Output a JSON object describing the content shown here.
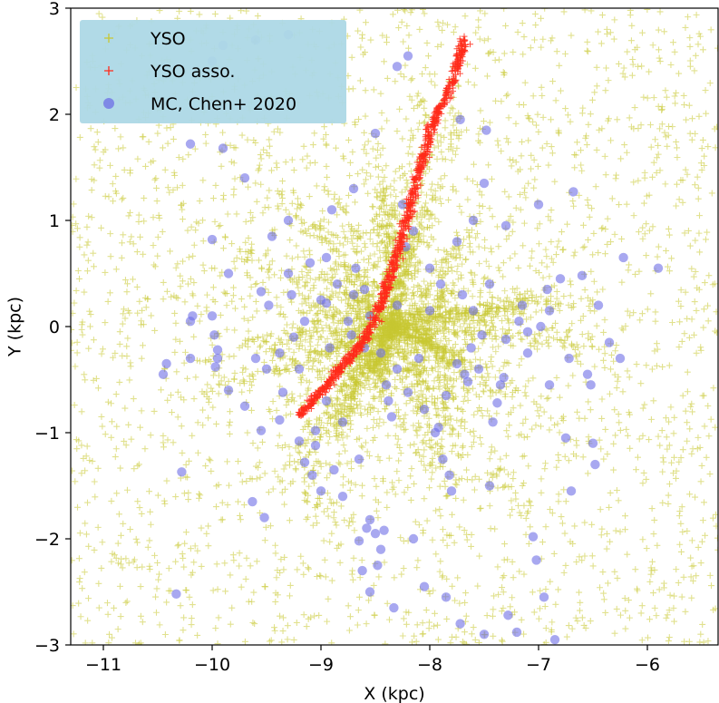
{
  "chart_data": {
    "type": "scatter",
    "xlabel": "X (kpc)",
    "ylabel": "Y (kpc)",
    "xlim": [
      -11.3,
      -5.35
    ],
    "ylim": [
      -3,
      3
    ],
    "xticks": [
      -11,
      -10,
      -9,
      -8,
      -7,
      -6
    ],
    "xtick_labels": [
      "−11",
      "−10",
      "−9",
      "−8",
      "−7",
      "−6"
    ],
    "yticks": [
      -3,
      -2,
      -1,
      0,
      1,
      2,
      3
    ],
    "ytick_labels": [
      "−3",
      "−2",
      "−1",
      "0",
      "1",
      "2",
      "3"
    ],
    "grid": false,
    "legend_position": "top-left",
    "legend_background": "#add8e6",
    "series": [
      {
        "name": "YSO",
        "marker": "plus",
        "color": "#c8c832",
        "distribution": {
          "center": [
            -8.34,
            0.0
          ],
          "radial_spokes": true,
          "extent": [
            -11.3,
            -5.35,
            -3,
            3
          ]
        }
      },
      {
        "name": "YSO asso.",
        "marker": "plus",
        "color": "#ff2a1a",
        "points_line": [
          [
            -9.2,
            -0.85
          ],
          [
            -9.1,
            -0.72
          ],
          [
            -9.0,
            -0.62
          ],
          [
            -8.9,
            -0.5
          ],
          [
            -8.8,
            -0.38
          ],
          [
            -8.7,
            -0.25
          ],
          [
            -8.6,
            -0.12
          ],
          [
            -8.5,
            0.05
          ],
          [
            -8.45,
            0.2
          ],
          [
            -8.4,
            0.35
          ],
          [
            -8.35,
            0.5
          ],
          [
            -8.3,
            0.68
          ],
          [
            -8.25,
            0.85
          ],
          [
            -8.2,
            1.05
          ],
          [
            -8.15,
            1.25
          ],
          [
            -8.1,
            1.45
          ],
          [
            -8.05,
            1.62
          ],
          [
            -8.0,
            1.8
          ],
          [
            -7.95,
            1.98
          ],
          [
            -7.85,
            2.15
          ],
          [
            -7.78,
            2.35
          ],
          [
            -7.72,
            2.55
          ],
          [
            -7.68,
            2.72
          ]
        ]
      },
      {
        "name": "MC, Chen+ 2020",
        "marker": "circle",
        "color": "#6e6ee6",
        "points": [
          [
            -10.45,
            -0.45
          ],
          [
            -10.42,
            -0.35
          ],
          [
            -10.2,
            0.05
          ],
          [
            -10.18,
            0.1
          ],
          [
            -10.2,
            -0.3
          ],
          [
            -10.28,
            -1.37
          ],
          [
            -10.33,
            -2.52
          ],
          [
            -9.95,
            -0.3
          ],
          [
            -10.0,
            0.82
          ],
          [
            -10.0,
            0.1
          ],
          [
            -9.98,
            -0.08
          ],
          [
            -9.95,
            -0.22
          ],
          [
            -9.97,
            -0.38
          ],
          [
            -9.85,
            0.5
          ],
          [
            -9.9,
            1.68
          ],
          [
            -10.2,
            1.72
          ],
          [
            -9.85,
            -0.6
          ],
          [
            -9.7,
            -0.75
          ],
          [
            -9.63,
            -1.65
          ],
          [
            -9.55,
            -0.98
          ],
          [
            -9.52,
            -1.8
          ],
          [
            -9.38,
            -0.88
          ],
          [
            -9.48,
            0.2
          ],
          [
            -9.5,
            -0.4
          ],
          [
            -9.55,
            0.33
          ],
          [
            -9.35,
            -0.62
          ],
          [
            -9.38,
            -0.25
          ],
          [
            -9.3,
            0.5
          ],
          [
            -9.25,
            -0.1
          ],
          [
            -9.27,
            0.3
          ],
          [
            -9.2,
            -1.08
          ],
          [
            -9.15,
            -1.28
          ],
          [
            -9.08,
            -1.4
          ],
          [
            -9.05,
            -0.98
          ],
          [
            -9.05,
            -1.12
          ],
          [
            -9.0,
            -1.55
          ],
          [
            -8.95,
            0.65
          ],
          [
            -8.95,
            0.22
          ],
          [
            -8.92,
            -0.2
          ],
          [
            -8.88,
            -1.35
          ],
          [
            -8.85,
            0.4
          ],
          [
            -8.8,
            -1.6
          ],
          [
            -8.75,
            0.05
          ],
          [
            -8.72,
            -0.08
          ],
          [
            -8.7,
            0.3
          ],
          [
            -8.68,
            0.55
          ],
          [
            -8.65,
            -1.25
          ],
          [
            -8.65,
            -2.02
          ],
          [
            -8.62,
            -2.3
          ],
          [
            -8.58,
            -1.9
          ],
          [
            -8.55,
            -1.82
          ],
          [
            -8.55,
            -2.5
          ],
          [
            -8.5,
            -1.95
          ],
          [
            -8.48,
            -2.25
          ],
          [
            -8.45,
            -2.1
          ],
          [
            -8.42,
            -1.92
          ],
          [
            -8.38,
            -0.7
          ],
          [
            -8.35,
            -0.85
          ],
          [
            -8.33,
            -2.65
          ],
          [
            -8.3,
            0.2
          ],
          [
            -8.3,
            2.45
          ],
          [
            -8.2,
            2.55
          ],
          [
            -8.25,
            1.15
          ],
          [
            -8.22,
            0.75
          ],
          [
            -8.2,
            -0.62
          ],
          [
            -8.15,
            -2.0
          ],
          [
            -8.05,
            -0.78
          ],
          [
            -8.05,
            -2.45
          ],
          [
            -8.0,
            0.15
          ],
          [
            -7.95,
            -1.0
          ],
          [
            -7.92,
            -0.95
          ],
          [
            -7.88,
            -1.25
          ],
          [
            -7.85,
            -2.55
          ],
          [
            -7.82,
            -1.4
          ],
          [
            -7.8,
            -1.55
          ],
          [
            -7.75,
            0.8
          ],
          [
            -7.72,
            -2.8
          ],
          [
            -7.68,
            -0.45
          ],
          [
            -7.65,
            -0.52
          ],
          [
            -7.62,
            -0.2
          ],
          [
            -7.6,
            0.15
          ],
          [
            -7.55,
            -0.4
          ],
          [
            -7.52,
            -0.08
          ],
          [
            -7.5,
            -2.9
          ],
          [
            -7.48,
            1.85
          ],
          [
            -7.45,
            -1.5
          ],
          [
            -7.42,
            -0.9
          ],
          [
            -7.38,
            -0.72
          ],
          [
            -7.35,
            -0.55
          ],
          [
            -7.32,
            -0.48
          ],
          [
            -7.3,
            -0.12
          ],
          [
            -7.28,
            -2.72
          ],
          [
            -7.2,
            -2.88
          ],
          [
            -7.18,
            0.05
          ],
          [
            -7.15,
            0.2
          ],
          [
            -7.1,
            -0.25
          ],
          [
            -7.05,
            -1.98
          ],
          [
            -7.02,
            -2.2
          ],
          [
            -7.0,
            1.15
          ],
          [
            -6.98,
            0.0
          ],
          [
            -6.95,
            -2.55
          ],
          [
            -6.92,
            0.35
          ],
          [
            -6.9,
            -0.55
          ],
          [
            -6.85,
            -2.95
          ],
          [
            -6.8,
            0.45
          ],
          [
            -6.75,
            -1.05
          ],
          [
            -6.72,
            -0.3
          ],
          [
            -6.7,
            -1.55
          ],
          [
            -6.68,
            1.27
          ],
          [
            -6.6,
            0.48
          ],
          [
            -6.55,
            -0.45
          ],
          [
            -6.52,
            -0.55
          ],
          [
            -6.5,
            -1.1
          ],
          [
            -6.48,
            -1.3
          ],
          [
            -6.45,
            0.2
          ],
          [
            -6.35,
            -0.15
          ],
          [
            -6.25,
            -0.3
          ],
          [
            -6.22,
            0.65
          ],
          [
            -5.9,
            0.55
          ],
          [
            -8.6,
            -0.2
          ],
          [
            -8.55,
            0.1
          ],
          [
            -8.5,
            1.82
          ],
          [
            -8.7,
            1.3
          ],
          [
            -8.9,
            1.1
          ],
          [
            -9.1,
            0.6
          ],
          [
            -9.6,
            -0.3
          ],
          [
            -9.45,
            0.85
          ],
          [
            -7.72,
            1.95
          ],
          [
            -7.5,
            1.35
          ],
          [
            -7.6,
            1.0
          ],
          [
            -7.3,
            0.95
          ],
          [
            -7.9,
            0.4
          ],
          [
            -7.7,
            0.3
          ],
          [
            -8.1,
            -0.3
          ],
          [
            -8.3,
            -0.4
          ],
          [
            -8.4,
            -0.55
          ],
          [
            -8.45,
            -0.25
          ],
          [
            -8.6,
            0.35
          ],
          [
            -9.0,
            0.25
          ],
          [
            -9.15,
            0.05
          ],
          [
            -9.2,
            -0.4
          ],
          [
            -8.8,
            -0.9
          ],
          [
            -8.95,
            -0.7
          ],
          [
            -7.1,
            -0.05
          ],
          [
            -6.9,
            0.15
          ],
          [
            -7.85,
            -0.65
          ],
          [
            -7.75,
            -0.35
          ],
          [
            -7.45,
            0.4
          ],
          [
            -8.15,
            0.9
          ],
          [
            -8.0,
            0.55
          ],
          [
            -9.3,
            1.0
          ],
          [
            -9.7,
            1.4
          ],
          [
            -10.0,
            2.5
          ],
          [
            -9.9,
            2.65
          ],
          [
            -9.6,
            2.7
          ],
          [
            -9.3,
            2.75
          ]
        ]
      }
    ]
  }
}
